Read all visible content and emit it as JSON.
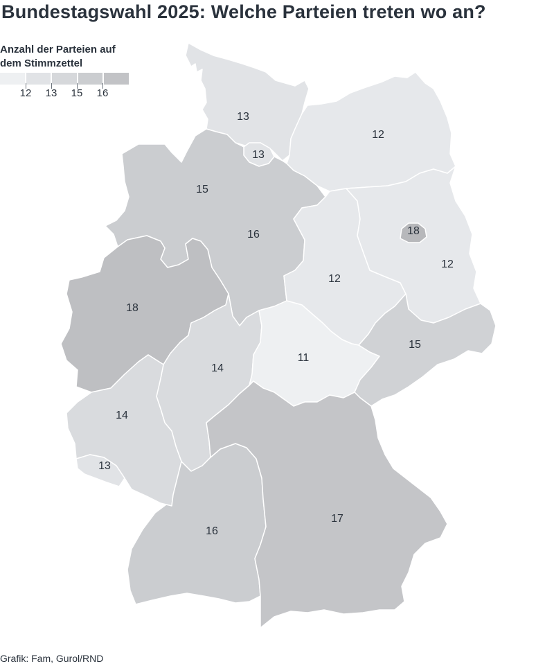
{
  "title": "Bundestagswahl 2025: Welche Parteien treten wo an?",
  "legend": {
    "title": "Anzahl der Parteien auf dem Stimmzettel",
    "bins": [
      {
        "color": "#eef0f2"
      },
      {
        "color": "#e1e3e6"
      },
      {
        "color": "#d6d8db"
      },
      {
        "color": "#cbcdd0"
      },
      {
        "color": "#c2c3c6"
      }
    ],
    "tick_labels": [
      "12",
      "13",
      "15",
      "16"
    ]
  },
  "states": [
    {
      "id": "schleswig-holstein",
      "value": "13",
      "color": "#e1e3e6"
    },
    {
      "id": "hamburg",
      "value": "13",
      "color": "#e1e3e6"
    },
    {
      "id": "mecklenburg-vorpommern",
      "value": "12",
      "color": "#e6e8eb"
    },
    {
      "id": "bremen",
      "value": "15",
      "color": "#cbcdd0"
    },
    {
      "id": "niedersachsen",
      "value": "16",
      "color": "#cbcdd0"
    },
    {
      "id": "berlin",
      "value": "18",
      "color": "#b7b8bb"
    },
    {
      "id": "brandenburg",
      "value": "12",
      "color": "#e6e8eb"
    },
    {
      "id": "sachsen-anhalt",
      "value": "12",
      "color": "#e6e8eb"
    },
    {
      "id": "nordrhein-westfalen",
      "value": "18",
      "color": "#bebfc2"
    },
    {
      "id": "hessen",
      "value": "14",
      "color": "#d9dbde"
    },
    {
      "id": "thueringen",
      "value": "11",
      "color": "#eef0f2"
    },
    {
      "id": "sachsen",
      "value": "15",
      "color": "#d0d2d5"
    },
    {
      "id": "rheinland-pfalz",
      "value": "14",
      "color": "#d9dbde"
    },
    {
      "id": "saarland",
      "value": "13",
      "color": "#e1e3e6"
    },
    {
      "id": "baden-wuerttemberg",
      "value": "16",
      "color": "#cbcdd0"
    },
    {
      "id": "bayern",
      "value": "17",
      "color": "#c4c5c8"
    }
  ],
  "credit": "Grafik: Fam, Gurol/RND"
}
